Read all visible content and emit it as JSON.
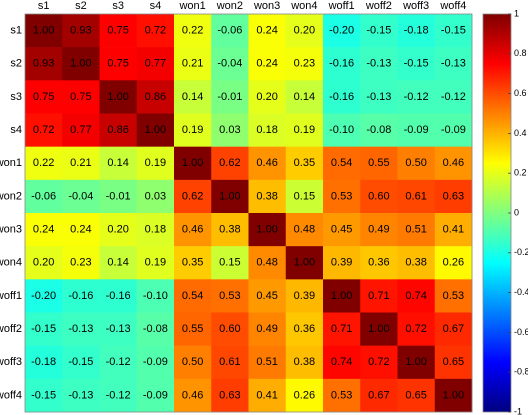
{
  "chart_data": {
    "type": "heatmap",
    "x_categories": [
      "s1",
      "s2",
      "s3",
      "s4",
      "won1",
      "won2",
      "won3",
      "won4",
      "woff1",
      "woff2",
      "woff3",
      "woff4"
    ],
    "y_categories": [
      "s1",
      "s2",
      "s3",
      "s4",
      "won1",
      "won2",
      "won3",
      "won4",
      "woff1",
      "woff2",
      "woff3",
      "woff4"
    ],
    "values": [
      [
        1.0,
        0.93,
        0.75,
        0.72,
        0.22,
        -0.06,
        0.24,
        0.2,
        -0.2,
        -0.15,
        -0.18,
        -0.15
      ],
      [
        0.93,
        1.0,
        0.75,
        0.77,
        0.21,
        -0.04,
        0.24,
        0.23,
        -0.16,
        -0.13,
        -0.15,
        -0.13
      ],
      [
        0.75,
        0.75,
        1.0,
        0.86,
        0.14,
        -0.01,
        0.2,
        0.14,
        -0.16,
        -0.13,
        -0.12,
        -0.12
      ],
      [
        0.72,
        0.77,
        0.86,
        1.0,
        0.19,
        0.03,
        0.18,
        0.19,
        -0.1,
        -0.08,
        -0.09,
        -0.09
      ],
      [
        0.22,
        0.21,
        0.14,
        0.19,
        1.0,
        0.62,
        0.46,
        0.35,
        0.54,
        0.55,
        0.5,
        0.46
      ],
      [
        -0.06,
        -0.04,
        -0.01,
        0.03,
        0.62,
        1.0,
        0.38,
        0.15,
        0.53,
        0.6,
        0.61,
        0.63
      ],
      [
        0.24,
        0.24,
        0.2,
        0.18,
        0.46,
        0.38,
        1.0,
        0.48,
        0.45,
        0.49,
        0.51,
        0.41
      ],
      [
        0.2,
        0.23,
        0.14,
        0.19,
        0.35,
        0.15,
        0.48,
        1.0,
        0.39,
        0.36,
        0.38,
        0.26
      ],
      [
        -0.2,
        -0.16,
        -0.16,
        -0.1,
        0.54,
        0.53,
        0.45,
        0.39,
        1.0,
        0.71,
        0.74,
        0.53
      ],
      [
        -0.15,
        -0.13,
        -0.13,
        -0.08,
        0.55,
        0.6,
        0.49,
        0.36,
        0.71,
        1.0,
        0.72,
        0.67
      ],
      [
        -0.18,
        -0.15,
        -0.12,
        -0.09,
        0.5,
        0.61,
        0.51,
        0.38,
        0.74,
        0.72,
        1.0,
        0.65
      ],
      [
        -0.15,
        -0.13,
        -0.12,
        -0.09,
        0.46,
        0.63,
        0.41,
        0.26,
        0.53,
        0.67,
        0.65,
        1.0
      ]
    ],
    "value_labels": [
      [
        "1.00",
        "0.93",
        "0.75",
        "0.72",
        "0.22",
        "-0.06",
        "0.24",
        "0.20",
        "-0.20",
        "-0.15",
        "-0.18",
        "-0.15"
      ],
      [
        "0.93",
        "1.00",
        "0.75",
        "0.77",
        "0.21",
        "-0.04",
        "0.24",
        "0.23",
        "-0.16",
        "-0.13",
        "-0.15",
        "-0.13"
      ],
      [
        "0.75",
        "0.75",
        "1.00",
        "0.86",
        "0.14",
        "-0.01",
        "0.20",
        "0.14",
        "-0.16",
        "-0.13",
        "-0.12",
        "-0.12"
      ],
      [
        "0.72",
        "0.77",
        "0.86",
        "1.00",
        "0.19",
        "0.03",
        "0.18",
        "0.19",
        "-0.10",
        "-0.08",
        "-0.09",
        "-0.09"
      ],
      [
        "0.22",
        "0.21",
        "0.14",
        "0.19",
        "1.00",
        "0.62",
        "0.46",
        "0.35",
        "0.54",
        "0.55",
        "0.50",
        "0.46"
      ],
      [
        "-0.06",
        "-0.04",
        "-0.01",
        "0.03",
        "0.62",
        "1.00",
        "0.38",
        "0.15",
        "0.53",
        "0.60",
        "0.61",
        "0.63"
      ],
      [
        "0.24",
        "0.24",
        "0.20",
        "0.18",
        "0.46",
        "0.38",
        "1.00",
        "0.48",
        "0.45",
        "0.49",
        "0.51",
        "0.41"
      ],
      [
        "0.20",
        "0.23",
        "0.14",
        "0.19",
        "0.35",
        "0.15",
        "0.48",
        "1.00",
        "0.39",
        "0.36",
        "0.38",
        "0.26"
      ],
      [
        "-0.20",
        "-0.16",
        "-0.16",
        "-0.10",
        "0.54",
        "0.53",
        "0.45",
        "0.39",
        "1.00",
        "0.71",
        "0.74",
        "0.53"
      ],
      [
        "-0.15",
        "-0.13",
        "-0.13",
        "-0.08",
        "0.55",
        "0.60",
        "0.49",
        "0.36",
        "0.71",
        "1.00",
        "0.72",
        "0.67"
      ],
      [
        "-0.18",
        "-0.15",
        "-0.12",
        "-0.09",
        "0.50",
        "0.61",
        "0.51",
        "0.38",
        "0.74",
        "0.72",
        "1.00",
        "0.65"
      ],
      [
        "-0.15",
        "-0.13",
        "-0.12",
        "-0.09",
        "0.46",
        "0.63",
        "0.41",
        "0.26",
        "0.53",
        "0.67",
        "0.65",
        "1.00"
      ]
    ],
    "colormap": "jet",
    "clim": [
      -1,
      1
    ],
    "cticks": [
      -1,
      -0.8,
      -0.6,
      -0.4,
      -0.2,
      0,
      0.2,
      0.4,
      0.6,
      0.8,
      1
    ]
  }
}
